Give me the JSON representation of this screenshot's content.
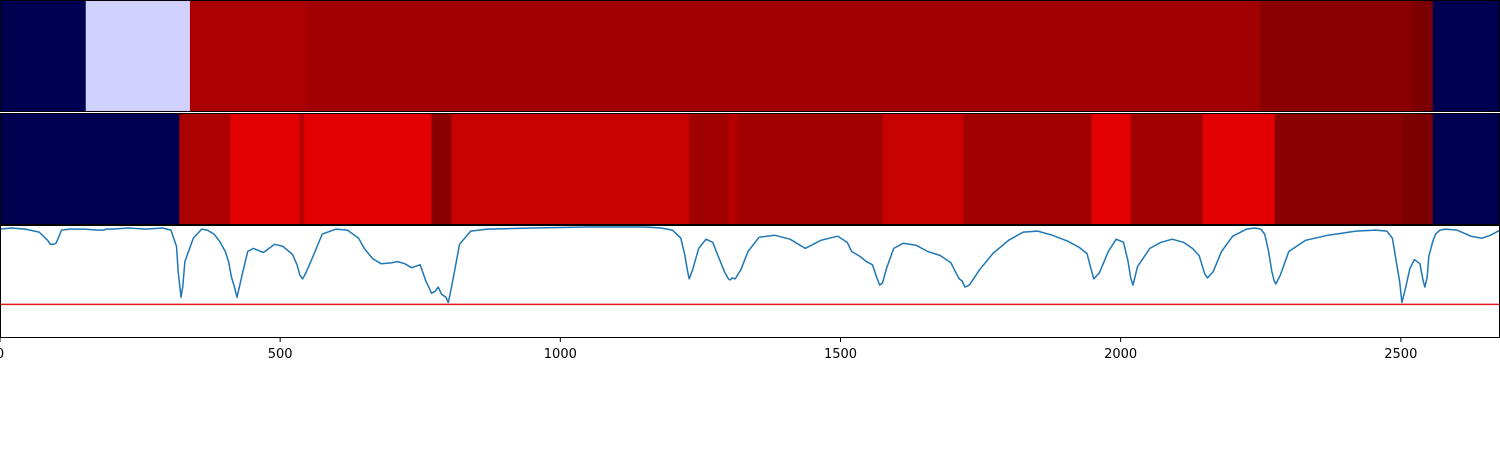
{
  "chart_data": [
    {
      "type": "heatmap",
      "panel": "segment-track-top",
      "segments": [
        {
          "start": 0,
          "end": 153,
          "color": "#000050"
        },
        {
          "start": 153,
          "end": 339,
          "color": "#d1d1ff"
        },
        {
          "start": 339,
          "end": 546,
          "color": "#ab0000"
        },
        {
          "start": 546,
          "end": 2249,
          "color": "#a10000"
        },
        {
          "start": 2249,
          "end": 2522,
          "color": "#8a0000"
        },
        {
          "start": 2522,
          "end": 2557,
          "color": "#7d0000"
        },
        {
          "start": 2557,
          "end": 2677,
          "color": "#000050"
        }
      ]
    },
    {
      "type": "heatmap",
      "panel": "segment-track-bottom",
      "segments": [
        {
          "start": 0,
          "end": 320,
          "color": "#000050"
        },
        {
          "start": 320,
          "end": 411,
          "color": "#ab0000"
        },
        {
          "start": 411,
          "end": 534,
          "color": "#e30000"
        },
        {
          "start": 534,
          "end": 543,
          "color": "#b80000"
        },
        {
          "start": 543,
          "end": 770,
          "color": "#e30000"
        },
        {
          "start": 770,
          "end": 805,
          "color": "#8a0000"
        },
        {
          "start": 805,
          "end": 1230,
          "color": "#c70000"
        },
        {
          "start": 1230,
          "end": 1300,
          "color": "#a10000"
        },
        {
          "start": 1300,
          "end": 1316,
          "color": "#b80000"
        },
        {
          "start": 1316,
          "end": 1575,
          "color": "#a10000"
        },
        {
          "start": 1575,
          "end": 1720,
          "color": "#c70000"
        },
        {
          "start": 1720,
          "end": 1948,
          "color": "#a10000"
        },
        {
          "start": 1948,
          "end": 2018,
          "color": "#e30000"
        },
        {
          "start": 2018,
          "end": 2146,
          "color": "#a10000"
        },
        {
          "start": 2146,
          "end": 2275,
          "color": "#e30000"
        },
        {
          "start": 2275,
          "end": 2502,
          "color": "#8a0000"
        },
        {
          "start": 2502,
          "end": 2557,
          "color": "#7d0000"
        },
        {
          "start": 2557,
          "end": 2677,
          "color": "#000050"
        }
      ]
    },
    {
      "type": "line",
      "panel": "signal",
      "xlim": [
        0,
        2677
      ],
      "ylim": [
        -0.1,
        1.0
      ],
      "xticks": [
        0,
        500,
        1000,
        1500,
        2000,
        2500
      ],
      "xtick_labels": [
        "0",
        "500",
        "1000",
        "1500",
        "2000",
        "2500"
      ],
      "threshold": {
        "y": 0.23,
        "color": "#e31a1c"
      },
      "series": [
        {
          "color": "#1f77b4",
          "x": [
            0,
            20,
            45,
            70,
            85,
            90,
            95,
            100,
            110,
            125,
            150,
            175,
            185,
            190,
            200,
            230,
            260,
            290,
            305,
            315,
            318,
            321,
            323,
            326,
            330,
            345,
            360,
            370,
            382,
            392,
            402,
            408,
            413,
            418,
            423,
            432,
            442,
            452,
            470,
            490,
            505,
            522,
            530,
            535,
            540,
            545,
            560,
            575,
            600,
            620,
            640,
            650,
            665,
            680,
            700,
            710,
            722,
            735,
            750,
            760,
            766,
            770,
            777,
            782,
            788,
            796,
            800,
            805,
            812,
            820,
            840,
            870,
            950,
            1050,
            1150,
            1180,
            1200,
            1215,
            1222,
            1227,
            1230,
            1236,
            1247,
            1260,
            1272,
            1282,
            1293,
            1300,
            1303,
            1307,
            1312,
            1322,
            1335,
            1355,
            1382,
            1410,
            1437,
            1465,
            1495,
            1512,
            1520,
            1535,
            1546,
            1557,
            1565,
            1570,
            1575,
            1582,
            1595,
            1612,
            1635,
            1656,
            1678,
            1697,
            1705,
            1712,
            1717,
            1722,
            1730,
            1748,
            1772,
            1800,
            1826,
            1852,
            1878,
            1906,
            1926,
            1940,
            1947,
            1952,
            1962,
            1978,
            1992,
            2005,
            2013,
            2018,
            2022,
            2030,
            2052,
            2072,
            2092,
            2112,
            2128,
            2140,
            2145,
            2150,
            2155,
            2165,
            2180,
            2200,
            2225,
            2240,
            2250,
            2257,
            2264,
            2270,
            2274,
            2277,
            2285,
            2300,
            2330,
            2370,
            2420,
            2455,
            2475,
            2485,
            2492,
            2498,
            2502,
            2508,
            2516,
            2524,
            2534,
            2540,
            2543,
            2547,
            2550,
            2557,
            2562,
            2570,
            2580,
            2600,
            2625,
            2645,
            2660,
            2677
          ],
          "y": [
            0.97,
            0.98,
            0.97,
            0.94,
            0.86,
            0.82,
            0.82,
            0.83,
            0.96,
            0.97,
            0.97,
            0.96,
            0.96,
            0.97,
            0.97,
            0.98,
            0.97,
            0.98,
            0.96,
            0.8,
            0.55,
            0.4,
            0.3,
            0.4,
            0.65,
            0.88,
            0.97,
            0.96,
            0.92,
            0.85,
            0.75,
            0.65,
            0.5,
            0.41,
            0.3,
            0.52,
            0.75,
            0.78,
            0.74,
            0.82,
            0.8,
            0.72,
            0.62,
            0.52,
            0.48,
            0.53,
            0.72,
            0.92,
            0.97,
            0.96,
            0.88,
            0.78,
            0.68,
            0.63,
            0.64,
            0.65,
            0.63,
            0.59,
            0.62,
            0.46,
            0.39,
            0.34,
            0.36,
            0.4,
            0.33,
            0.3,
            0.25,
            0.38,
            0.58,
            0.82,
            0.95,
            0.97,
            0.98,
            0.99,
            0.99,
            0.98,
            0.96,
            0.88,
            0.72,
            0.56,
            0.48,
            0.57,
            0.78,
            0.87,
            0.84,
            0.7,
            0.55,
            0.48,
            0.47,
            0.49,
            0.48,
            0.57,
            0.75,
            0.89,
            0.91,
            0.87,
            0.78,
            0.86,
            0.9,
            0.84,
            0.75,
            0.7,
            0.65,
            0.62,
            0.49,
            0.42,
            0.44,
            0.58,
            0.78,
            0.83,
            0.81,
            0.75,
            0.71,
            0.64,
            0.55,
            0.48,
            0.46,
            0.4,
            0.42,
            0.57,
            0.73,
            0.86,
            0.94,
            0.95,
            0.91,
            0.85,
            0.79,
            0.73,
            0.58,
            0.48,
            0.54,
            0.75,
            0.87,
            0.84,
            0.66,
            0.49,
            0.42,
            0.6,
            0.78,
            0.84,
            0.87,
            0.84,
            0.78,
            0.71,
            0.62,
            0.53,
            0.49,
            0.55,
            0.75,
            0.9,
            0.97,
            0.98,
            0.97,
            0.92,
            0.75,
            0.55,
            0.46,
            0.43,
            0.52,
            0.75,
            0.86,
            0.91,
            0.95,
            0.96,
            0.95,
            0.88,
            0.65,
            0.45,
            0.25,
            0.38,
            0.58,
            0.67,
            0.63,
            0.46,
            0.4,
            0.5,
            0.7,
            0.85,
            0.92,
            0.96,
            0.97,
            0.96,
            0.9,
            0.88,
            0.91,
            0.96
          ]
        }
      ]
    }
  ]
}
